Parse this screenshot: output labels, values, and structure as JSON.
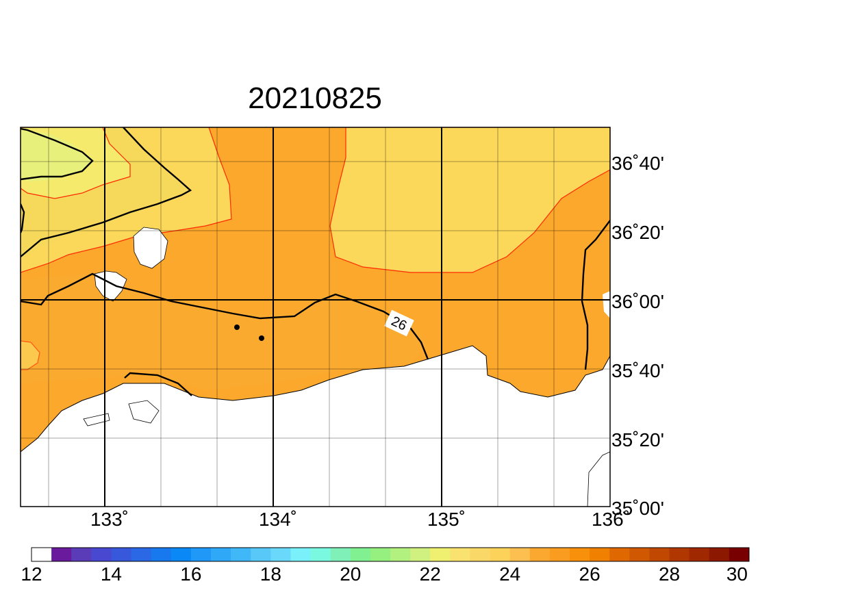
{
  "title": "20210825",
  "lon_labels": [
    "133˚",
    "134˚",
    "135˚",
    "136˚"
  ],
  "lat_labels": [
    "36˚40'",
    "36˚20'",
    "36˚00'",
    "35˚40'",
    "35˚20'",
    "35˚00'"
  ],
  "contour_label": "26",
  "colorbar": {
    "labels": [
      "12",
      "14",
      "16",
      "18",
      "20",
      "22",
      "24",
      "26",
      "28",
      "30"
    ],
    "colors": [
      "#ffffff",
      "#6a1a9c",
      "#5a3cb8",
      "#4848d0",
      "#3858dc",
      "#2a68e6",
      "#1878ee",
      "#0a88f6",
      "#2098f8",
      "#30a8f8",
      "#40b8f8",
      "#58c8f8",
      "#6ad8fa",
      "#7af0fa",
      "#7af8e0",
      "#7ef0b8",
      "#80f090",
      "#96f080",
      "#b2f080",
      "#d0f080",
      "#f0f070",
      "#fae270",
      "#fad868",
      "#fdd25a",
      "#fdc050",
      "#fba830",
      "#fa9c20",
      "#f8900c",
      "#f08000",
      "#e06800",
      "#d05800",
      "#c04800",
      "#b03800",
      "#a02800",
      "#8c1800",
      "#780000"
    ]
  },
  "palette": {
    "light_yellow": "#fbd75a",
    "orange": "#fba82c",
    "pale_green_yellow": "#e8f07c",
    "pale_yellow": "#f6ea6c",
    "red_contour": "#ff2a00",
    "black_contour": "#000000"
  }
}
